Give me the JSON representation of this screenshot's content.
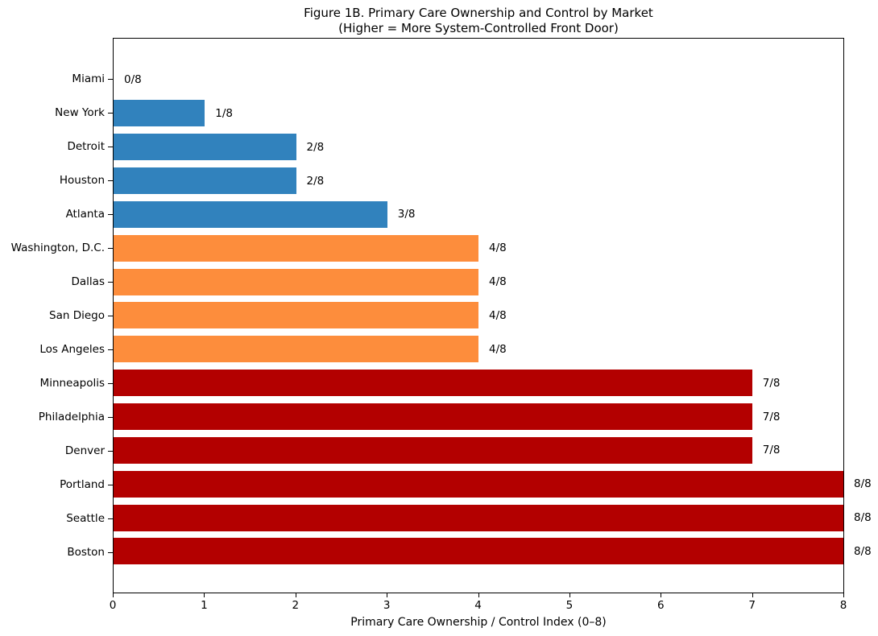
{
  "figure": {
    "title_line1": "Figure 1B. Primary Care Ownership and Control by Market",
    "title_line2": "(Higher = More System-Controlled Front Door)"
  },
  "chart_data": {
    "type": "bar",
    "orientation": "horizontal",
    "title": "Figure 1B. Primary Care Ownership and Control by Market\n(Higher = More System-Controlled Front Door)",
    "xlabel": "Primary Care Ownership / Control Index (0–8)",
    "xlim": [
      0,
      8
    ],
    "x_ticks": [
      0,
      1,
      2,
      3,
      4,
      5,
      6,
      7,
      8
    ],
    "x_tick_labels": [
      "0",
      "1",
      "2",
      "3",
      "4",
      "5",
      "6",
      "7",
      "8"
    ],
    "grid": false,
    "legend": null,
    "categories": [
      "Miami",
      "New York",
      "Detroit",
      "Houston",
      "Atlanta",
      "Washington, D.C.",
      "Dallas",
      "San Diego",
      "Los Angeles",
      "Minneapolis",
      "Philadelphia",
      "Denver",
      "Portland",
      "Seattle",
      "Boston"
    ],
    "values": [
      0,
      1,
      2,
      2,
      3,
      4,
      4,
      4,
      4,
      7,
      7,
      7,
      8,
      8,
      8
    ],
    "value_labels": [
      "0/8",
      "1/8",
      "2/8",
      "2/8",
      "3/8",
      "4/8",
      "4/8",
      "4/8",
      "4/8",
      "7/8",
      "7/8",
      "7/8",
      "8/8",
      "8/8",
      "8/8"
    ],
    "bar_colors": [
      "#3182bd",
      "#3182bd",
      "#3182bd",
      "#3182bd",
      "#3182bd",
      "#fd8d3c",
      "#fd8d3c",
      "#fd8d3c",
      "#fd8d3c",
      "#b30000",
      "#b30000",
      "#b30000",
      "#b30000",
      "#b30000",
      "#b30000"
    ],
    "color_key": {
      "low_0_to_3": "#3182bd",
      "medium_4": "#fd8d3c",
      "high_7_to_8": "#b30000"
    },
    "spine_color": "#000000",
    "text_color": "#000000"
  }
}
